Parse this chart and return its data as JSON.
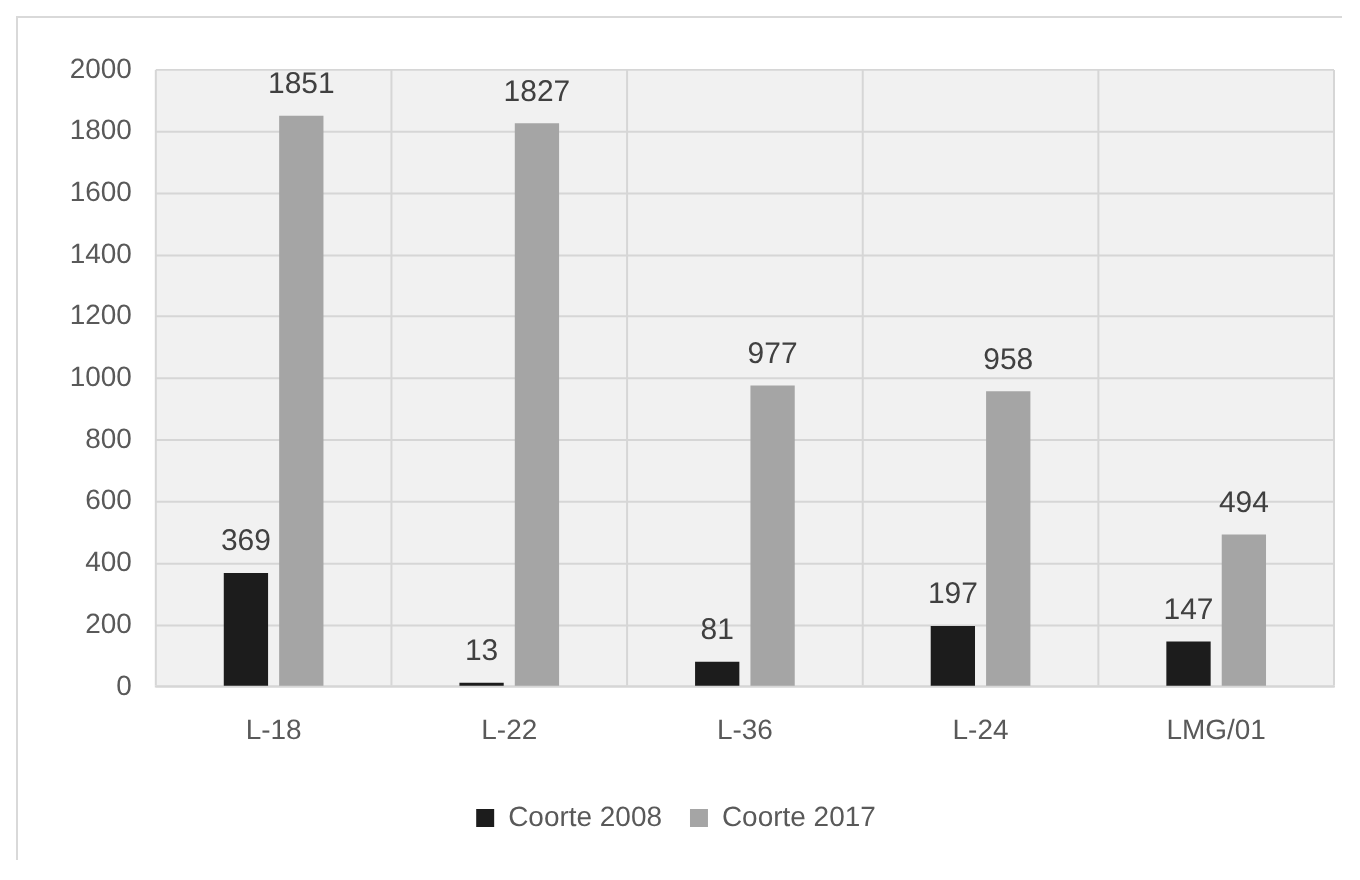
{
  "chart_data": {
    "type": "bar",
    "categories": [
      "L-18",
      "L-22",
      "L-36",
      "L-24",
      "LMG/01"
    ],
    "series": [
      {
        "name": "Coorte 2008",
        "color": "#1c1c1c",
        "values": [
          369,
          13,
          81,
          197,
          147
        ]
      },
      {
        "name": "Coorte 2017",
        "color": "#a5a5a5",
        "values": [
          1851,
          1827,
          977,
          958,
          494
        ]
      }
    ],
    "ylim": [
      0,
      2000
    ],
    "yticks": [
      0,
      200,
      400,
      600,
      800,
      1000,
      1200,
      1400,
      1600,
      1800,
      2000
    ],
    "grid": true,
    "legend": "bottom",
    "data_labels": true
  }
}
